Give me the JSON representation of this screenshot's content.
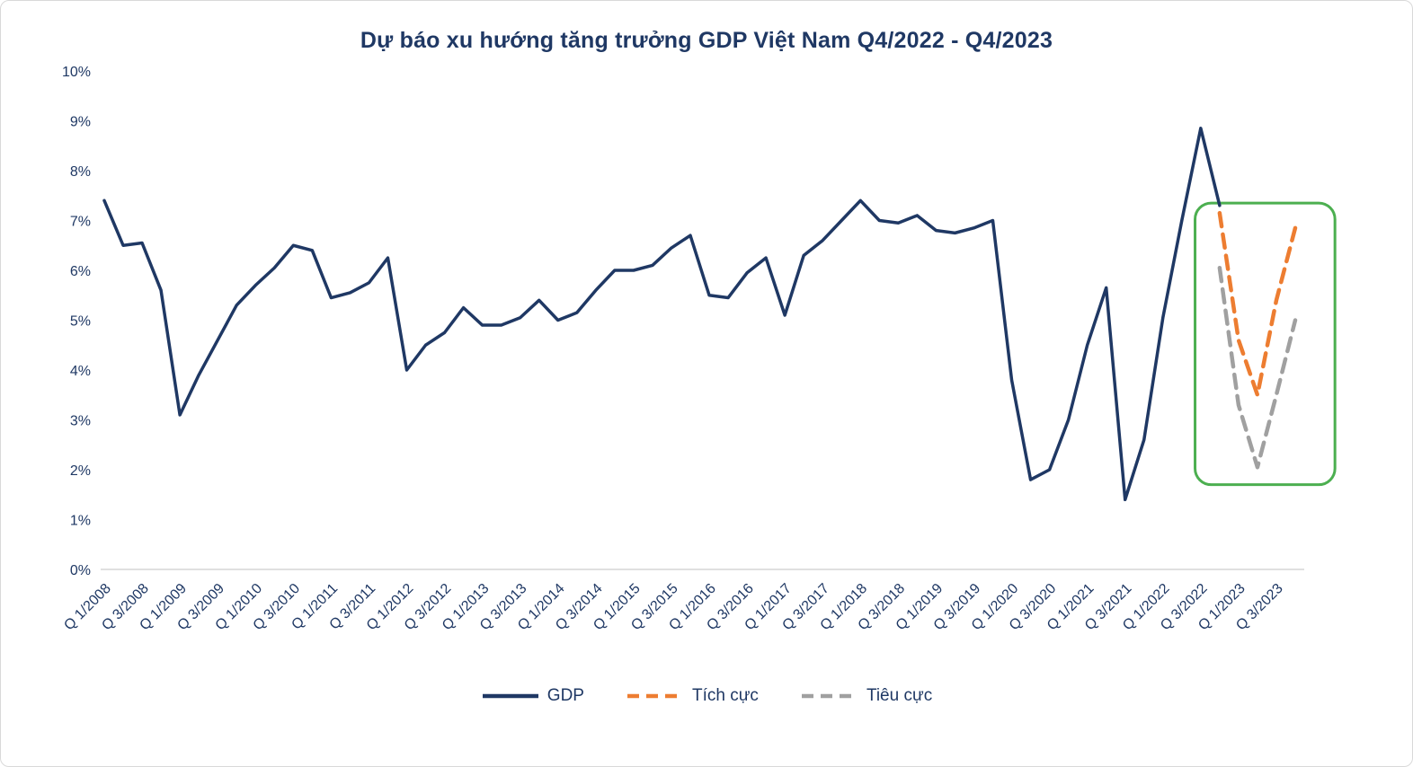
{
  "chart_data": {
    "type": "line",
    "title": "Dự báo xu hướng tăng trưởng GDP Việt Nam Q4/2022 - Q4/2023",
    "ylim": [
      0,
      10
    ],
    "grid": false,
    "legend_position": "bottom",
    "axis_color": "#D6D6D6",
    "text_color": "#1F3864",
    "y_tick_labels": [
      "0%",
      "1%",
      "2%",
      "3%",
      "4%",
      "5%",
      "6%",
      "7%",
      "8%",
      "9%",
      "10%"
    ],
    "x_tick_labels": [
      "Q 1/2008",
      "Q 3/2008",
      "Q 1/2009",
      "Q 3/2009",
      "Q 1/2010",
      "Q 3/2010",
      "Q 1/2011",
      "Q 3/2011",
      "Q 1/2012",
      "Q 3/2012",
      "Q 1/2013",
      "Q 3/2013",
      "Q 1/2014",
      "Q 3/2014",
      "Q 1/2015",
      "Q 3/2015",
      "Q 1/2016",
      "Q 3/2016",
      "Q 1/2017",
      "Q 3/2017",
      "Q 1/2018",
      "Q 3/2018",
      "Q 1/2019",
      "Q 3/2019",
      "Q 1/2020",
      "Q 3/2020",
      "Q 1/2021",
      "Q 3/2021",
      "Q 1/2022",
      "Q 3/2022",
      "Q 1/2023",
      "Q 3/2023"
    ],
    "quarters_total": 64,
    "series": [
      {
        "key": "gdp",
        "name": "GDP",
        "color": "#1F3864",
        "dash": "solid",
        "width": 3.5,
        "start_index": 0,
        "values": [
          7.4,
          6.5,
          6.55,
          5.6,
          3.1,
          3.9,
          4.6,
          5.3,
          5.7,
          6.05,
          6.5,
          6.4,
          5.45,
          5.55,
          5.75,
          6.25,
          4.0,
          4.5,
          4.75,
          5.25,
          4.9,
          4.9,
          5.05,
          5.4,
          5.0,
          5.15,
          5.6,
          6.0,
          6.0,
          6.1,
          6.45,
          6.7,
          5.5,
          5.45,
          5.95,
          6.25,
          5.1,
          6.3,
          6.6,
          7.0,
          7.4,
          7.0,
          6.95,
          7.1,
          6.8,
          6.75,
          6.85,
          7.0,
          3.8,
          1.8,
          2.0,
          3.0,
          4.5,
          5.65,
          1.4,
          2.6,
          5.05,
          7.0,
          8.85,
          7.3
        ]
      },
      {
        "key": "tich-cuc",
        "name": "Tích cực",
        "color": "#ED7D31",
        "dash": "dashed",
        "width": 4.5,
        "start_index": 59,
        "values": [
          7.15,
          4.6,
          3.5,
          5.4,
          6.85
        ]
      },
      {
        "key": "tieu-cuc",
        "name": "Tiêu cực",
        "color": "#A0A0A0",
        "dash": "dashed",
        "width": 4.5,
        "start_index": 59,
        "values": [
          6.05,
          3.3,
          2.05,
          3.5,
          5.0
        ]
      }
    ],
    "highlight_box": {
      "x_from_quarter": 57.7,
      "x_to_quarter": 65.1,
      "y_from": 1.7,
      "y_to": 7.35,
      "color": "#4CAF50",
      "radius": 18
    }
  }
}
